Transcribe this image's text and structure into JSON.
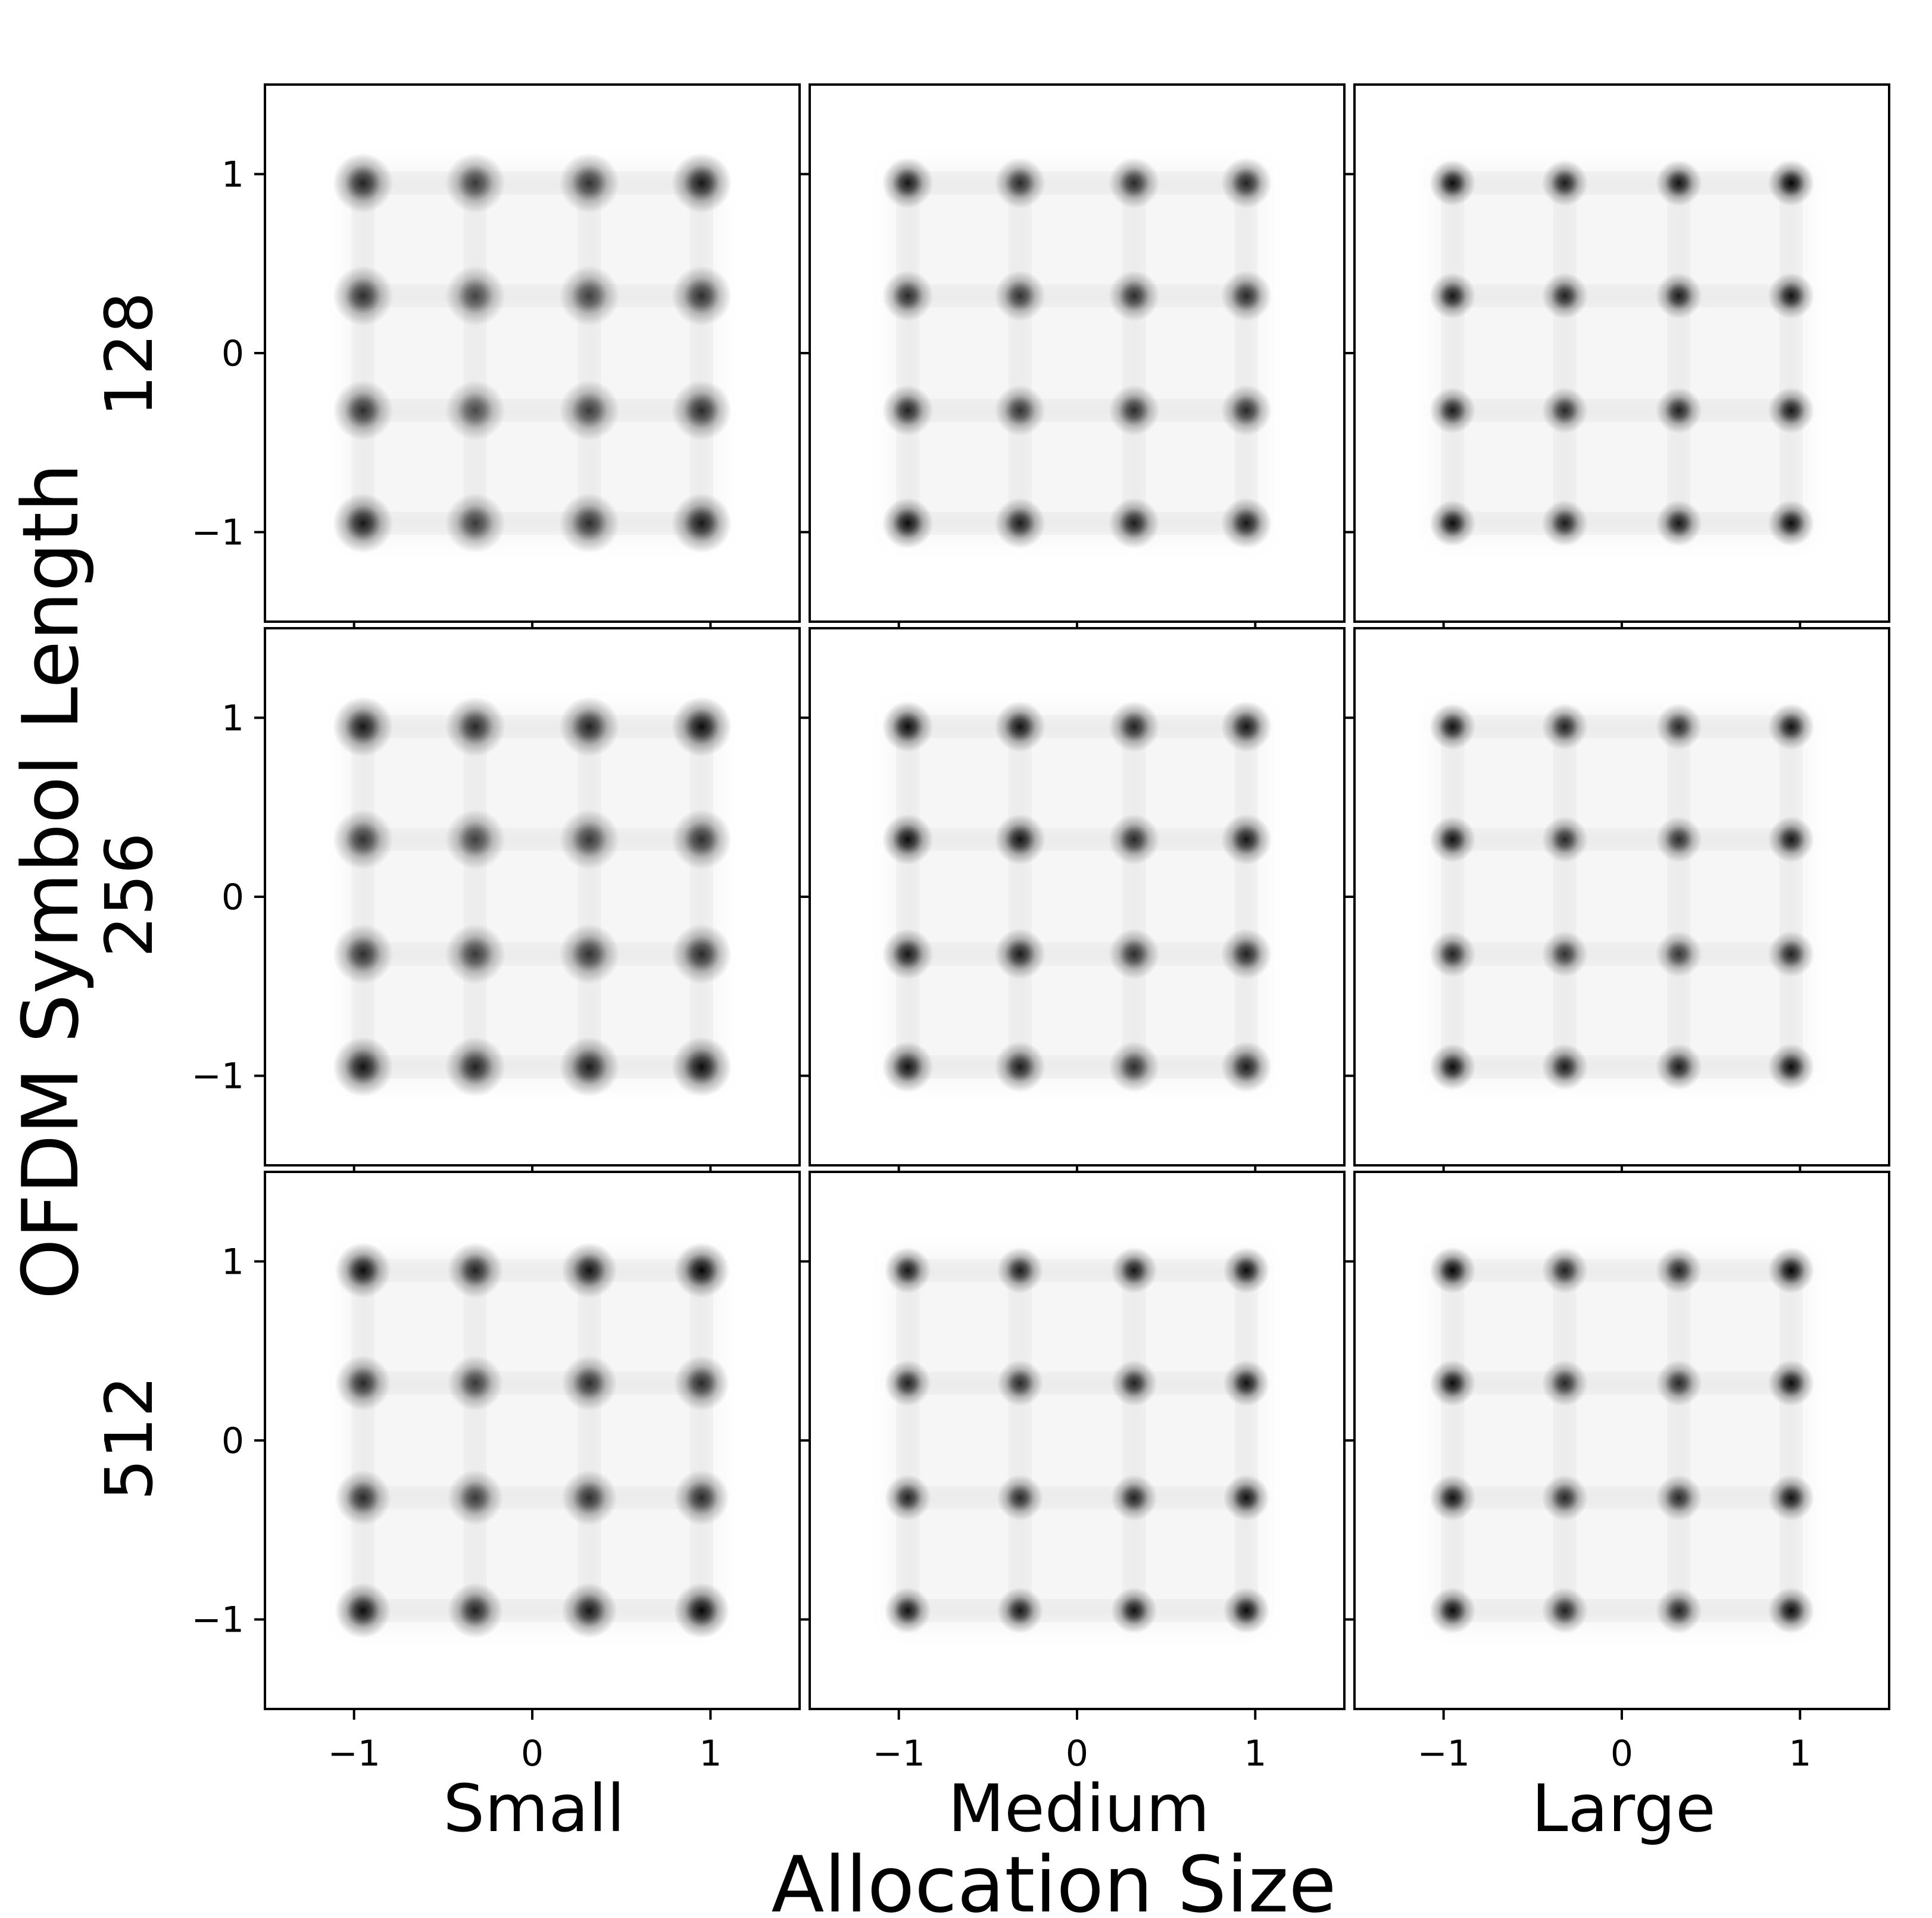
{
  "figure": {
    "xlabel": "Allocation Size",
    "ylabel": "OFDM Symbol Length",
    "column_labels": [
      "Small",
      "Medium",
      "Large"
    ],
    "row_labels": [
      "128",
      "256",
      "512"
    ]
  },
  "chart_data": {
    "type": "heatmap",
    "description_of_marks": "2D density of received 16-QAM constellation points, 3x3 grid of panels",
    "rows": [
      "128",
      "256",
      "512"
    ],
    "columns": [
      "Small",
      "Medium",
      "Large"
    ],
    "xlim": [
      -1.5,
      1.5
    ],
    "ylim": [
      -1.5,
      1.5
    ],
    "xticks": [
      -1,
      0,
      1
    ],
    "yticks": [
      -1,
      0,
      1
    ],
    "xtick_labels": [
      "−1",
      "0",
      "1"
    ],
    "ytick_labels": [
      "−1",
      "0",
      "1"
    ],
    "constellation_levels": [
      -0.95,
      -0.32,
      0.32,
      0.95
    ],
    "colormap": "greys",
    "panels": [
      {
        "row": "128",
        "column": "Small",
        "spread": 0.065,
        "intensity": [
          [
            0.85,
            0.75,
            0.78,
            0.9
          ],
          [
            0.8,
            0.7,
            0.72,
            0.8
          ],
          [
            0.8,
            0.68,
            0.74,
            0.82
          ],
          [
            0.9,
            0.75,
            0.8,
            0.9
          ]
        ]
      },
      {
        "row": "128",
        "column": "Medium",
        "spread": 0.055,
        "intensity": [
          [
            0.9,
            0.82,
            0.82,
            0.85
          ],
          [
            0.82,
            0.78,
            0.8,
            0.82
          ],
          [
            0.85,
            0.78,
            0.8,
            0.82
          ],
          [
            0.95,
            0.88,
            0.88,
            0.9
          ]
        ]
      },
      {
        "row": "128",
        "column": "Large",
        "spread": 0.05,
        "intensity": [
          [
            0.95,
            0.88,
            0.92,
            0.98
          ],
          [
            0.9,
            0.85,
            0.88,
            0.92
          ],
          [
            0.88,
            0.82,
            0.86,
            0.9
          ],
          [
            0.95,
            0.88,
            0.9,
            0.95
          ]
        ]
      },
      {
        "row": "256",
        "column": "Small",
        "spread": 0.065,
        "intensity": [
          [
            0.9,
            0.82,
            0.85,
            0.95
          ],
          [
            0.78,
            0.72,
            0.75,
            0.8
          ],
          [
            0.8,
            0.75,
            0.78,
            0.82
          ],
          [
            0.92,
            0.85,
            0.88,
            0.95
          ]
        ]
      },
      {
        "row": "256",
        "column": "Medium",
        "spread": 0.055,
        "intensity": [
          [
            0.95,
            0.92,
            0.85,
            0.9
          ],
          [
            0.95,
            0.92,
            0.82,
            0.9
          ],
          [
            0.9,
            0.88,
            0.8,
            0.85
          ],
          [
            0.92,
            0.88,
            0.8,
            0.88
          ]
        ]
      },
      {
        "row": "256",
        "column": "Large",
        "spread": 0.05,
        "intensity": [
          [
            0.92,
            0.85,
            0.82,
            0.92
          ],
          [
            0.92,
            0.82,
            0.8,
            0.9
          ],
          [
            0.85,
            0.78,
            0.76,
            0.85
          ],
          [
            0.95,
            0.88,
            0.88,
            0.95
          ]
        ]
      },
      {
        "row": "512",
        "column": "Small",
        "spread": 0.06,
        "intensity": [
          [
            0.95,
            0.85,
            0.92,
            0.98
          ],
          [
            0.82,
            0.75,
            0.8,
            0.82
          ],
          [
            0.82,
            0.75,
            0.8,
            0.82
          ],
          [
            0.95,
            0.85,
            0.9,
            0.98
          ]
        ]
      },
      {
        "row": "512",
        "column": "Medium",
        "spread": 0.05,
        "intensity": [
          [
            0.9,
            0.88,
            0.9,
            0.95
          ],
          [
            0.85,
            0.82,
            0.85,
            0.92
          ],
          [
            0.85,
            0.82,
            0.85,
            0.92
          ],
          [
            0.92,
            0.9,
            0.92,
            0.95
          ]
        ]
      },
      {
        "row": "512",
        "column": "Large",
        "spread": 0.05,
        "intensity": [
          [
            0.98,
            0.85,
            0.85,
            0.98
          ],
          [
            0.95,
            0.82,
            0.82,
            0.95
          ],
          [
            0.92,
            0.82,
            0.82,
            0.92
          ],
          [
            0.95,
            0.85,
            0.85,
            0.95
          ]
        ]
      }
    ]
  }
}
